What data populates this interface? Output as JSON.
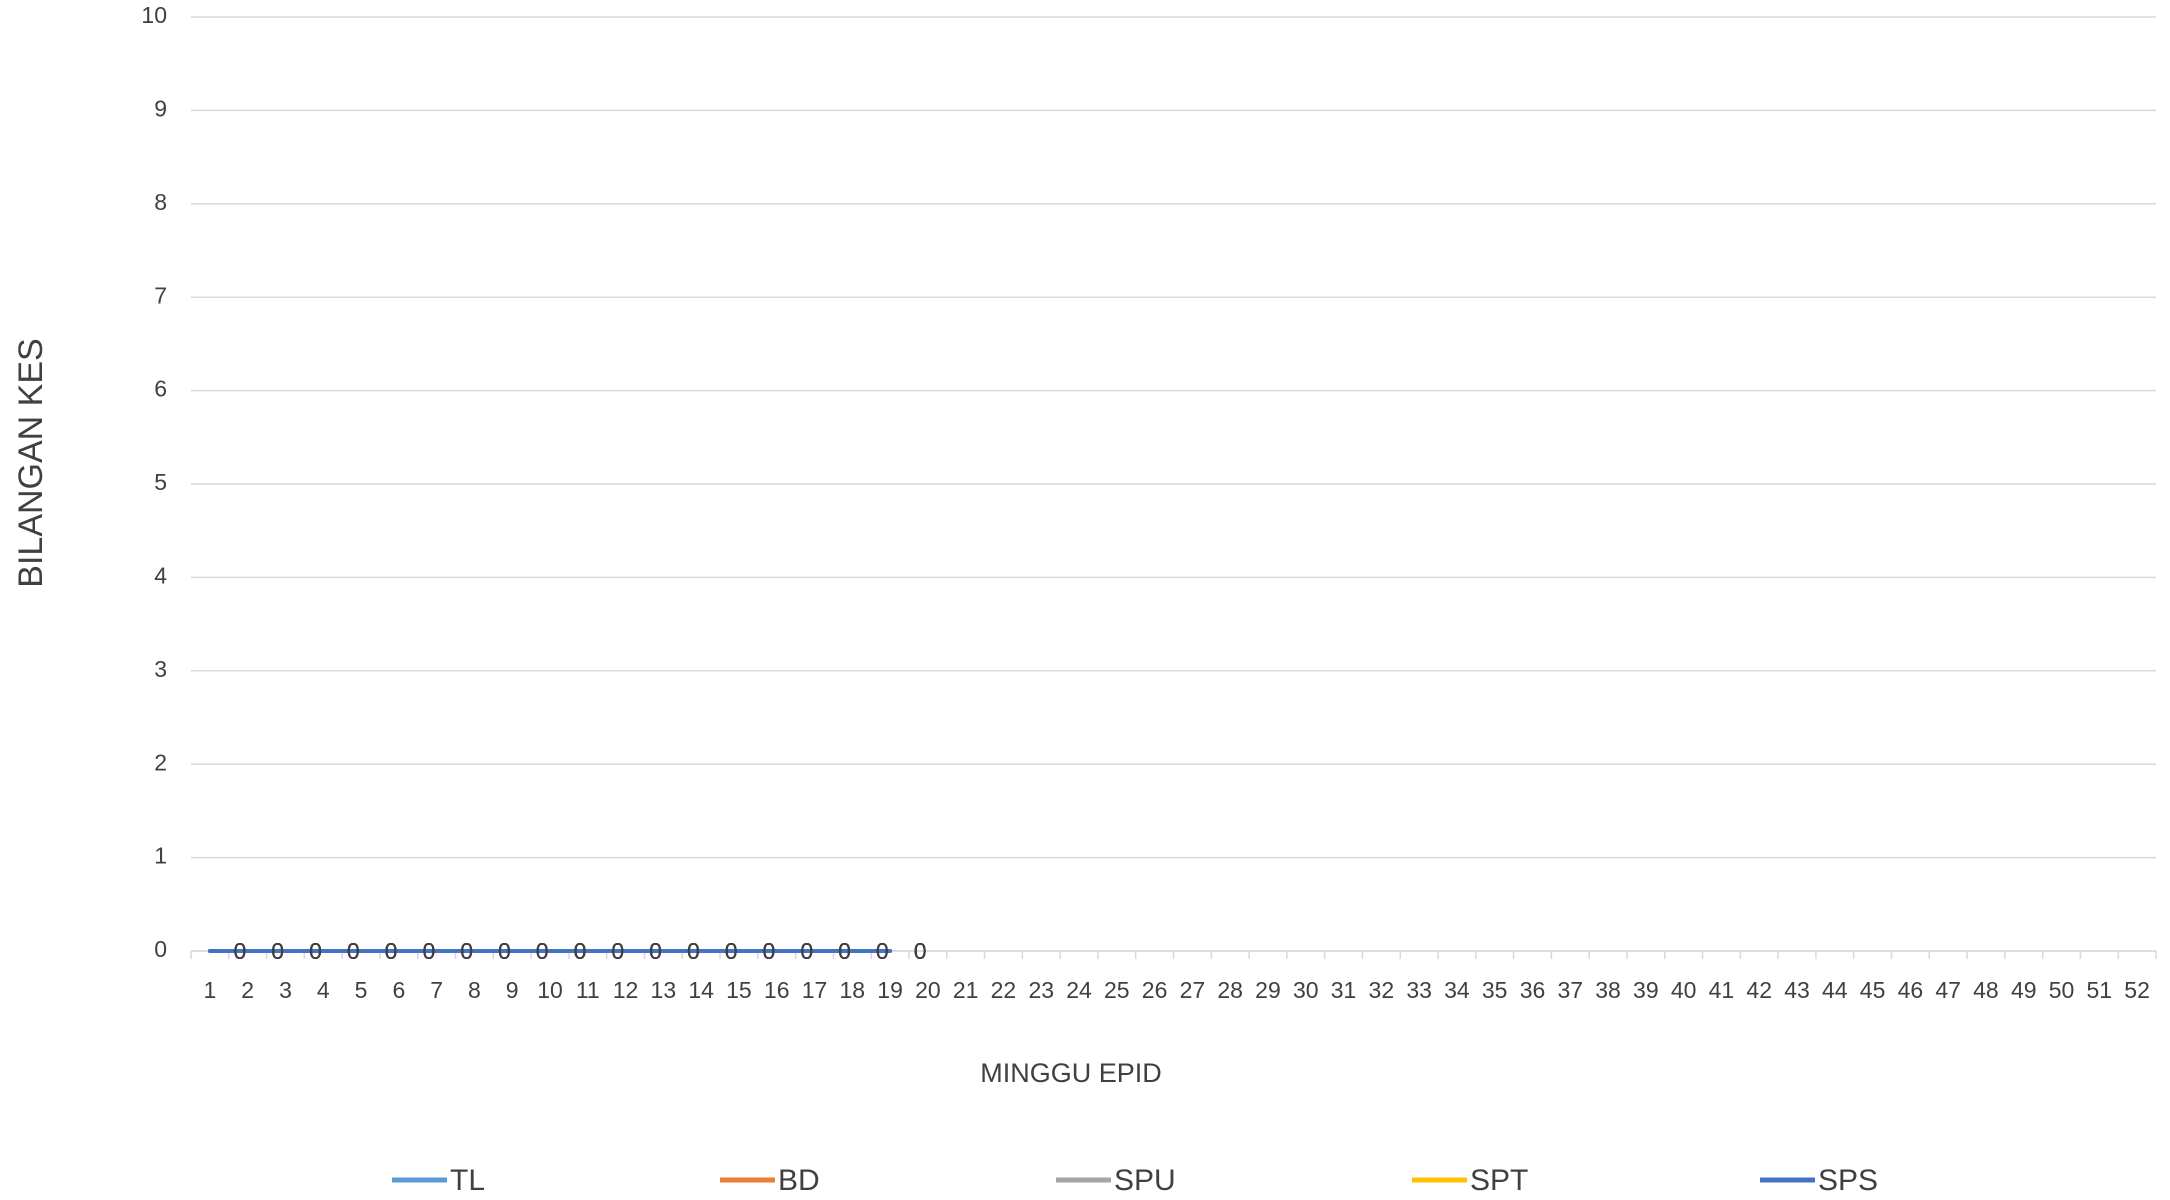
{
  "chart_data": {
    "type": "line",
    "x_label": "MINGGU EPID",
    "y_label": "BILANGAN KES",
    "categories": [
      "1",
      "2",
      "3",
      "4",
      "5",
      "6",
      "7",
      "8",
      "9",
      "10",
      "11",
      "12",
      "13",
      "14",
      "15",
      "16",
      "17",
      "18",
      "19",
      "20",
      "21",
      "22",
      "23",
      "24",
      "25",
      "26",
      "27",
      "28",
      "29",
      "30",
      "31",
      "32",
      "33",
      "34",
      "35",
      "36",
      "37",
      "38",
      "39",
      "40",
      "41",
      "42",
      "43",
      "44",
      "45",
      "46",
      "47",
      "48",
      "49",
      "50",
      "51",
      "52"
    ],
    "series": [
      {
        "name": "TL",
        "color": "#5b9bd5",
        "values": [
          0,
          0,
          0,
          0,
          0,
          0,
          0,
          0,
          0,
          0,
          0,
          0,
          0,
          0,
          0,
          0,
          0,
          0,
          0,
          null,
          null,
          null,
          null,
          null,
          null,
          null,
          null,
          null,
          null,
          null,
          null,
          null,
          null,
          null,
          null,
          null,
          null,
          null,
          null,
          null,
          null,
          null,
          null,
          null,
          null,
          null,
          null,
          null,
          null,
          null,
          null,
          null
        ]
      },
      {
        "name": "BD",
        "color": "#ed7d31",
        "values": [
          0,
          0,
          0,
          0,
          0,
          0,
          0,
          0,
          0,
          0,
          0,
          0,
          0,
          0,
          0,
          0,
          0,
          0,
          0,
          null,
          null,
          null,
          null,
          null,
          null,
          null,
          null,
          null,
          null,
          null,
          null,
          null,
          null,
          null,
          null,
          null,
          null,
          null,
          null,
          null,
          null,
          null,
          null,
          null,
          null,
          null,
          null,
          null,
          null,
          null,
          null,
          null
        ]
      },
      {
        "name": "SPU",
        "color": "#a5a5a5",
        "values": [
          0,
          0,
          0,
          0,
          0,
          0,
          0,
          0,
          0,
          0,
          0,
          0,
          0,
          0,
          0,
          0,
          0,
          0,
          0,
          null,
          null,
          null,
          null,
          null,
          null,
          null,
          null,
          null,
          null,
          null,
          null,
          null,
          null,
          null,
          null,
          null,
          null,
          null,
          null,
          null,
          null,
          null,
          null,
          null,
          null,
          null,
          null,
          null,
          null,
          null,
          null,
          null
        ]
      },
      {
        "name": "SPT",
        "color": "#ffc000",
        "values": [
          0,
          0,
          0,
          0,
          0,
          0,
          0,
          0,
          0,
          0,
          0,
          0,
          0,
          0,
          0,
          0,
          0,
          0,
          0,
          null,
          null,
          null,
          null,
          null,
          null,
          null,
          null,
          null,
          null,
          null,
          null,
          null,
          null,
          null,
          null,
          null,
          null,
          null,
          null,
          null,
          null,
          null,
          null,
          null,
          null,
          null,
          null,
          null,
          null,
          null,
          null,
          null
        ]
      },
      {
        "name": "SPS",
        "color": "#4472c4",
        "values": [
          0,
          0,
          0,
          0,
          0,
          0,
          0,
          0,
          0,
          0,
          0,
          0,
          0,
          0,
          0,
          0,
          0,
          0,
          0,
          null,
          null,
          null,
          null,
          null,
          null,
          null,
          null,
          null,
          null,
          null,
          null,
          null,
          null,
          null,
          null,
          null,
          null,
          null,
          null,
          null,
          null,
          null,
          null,
          null,
          null,
          null,
          null,
          null,
          null,
          null,
          null,
          null
        ]
      }
    ],
    "ylim": [
      0,
      10
    ],
    "yticks": [
      0,
      1,
      2,
      3,
      4,
      5,
      6,
      7,
      8,
      9,
      10
    ],
    "grid": true,
    "data_labels": true,
    "legend": "bottom"
  }
}
